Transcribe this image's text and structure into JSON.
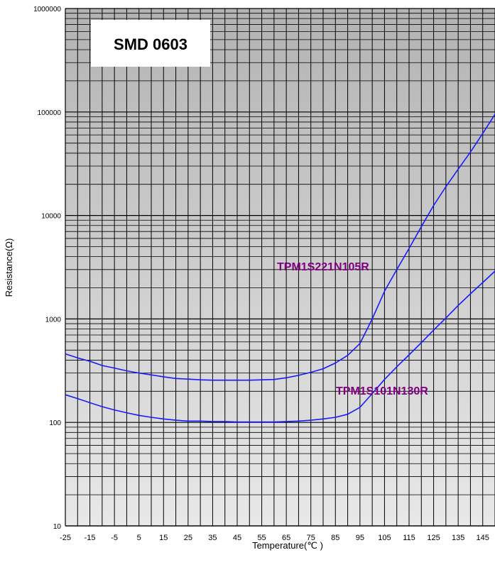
{
  "chart_data": {
    "type": "line",
    "title": "SMD 0603",
    "xlabel": "Temperature(℃ )",
    "ylabel": "Resistance(Ω)",
    "x_ticks": [
      -25,
      -15,
      -5,
      5,
      15,
      25,
      35,
      45,
      55,
      65,
      75,
      85,
      95,
      105,
      115,
      125,
      135,
      145
    ],
    "y_scale": "log",
    "y_ticks": [
      10,
      100,
      1000,
      10000,
      100000,
      1000000
    ],
    "y_tick_labels": [
      "10",
      "100",
      "1000",
      "10000",
      "100000",
      "1000000"
    ],
    "xlim": [
      -25,
      150
    ],
    "ylim": [
      10,
      1000000
    ],
    "grid": true,
    "series": [
      {
        "name": "TPM1S221N105R",
        "x": [
          -25,
          -20,
          -15,
          -10,
          -5,
          0,
          5,
          10,
          15,
          20,
          25,
          30,
          35,
          40,
          45,
          50,
          55,
          60,
          65,
          70,
          75,
          80,
          85,
          90,
          95,
          100,
          105,
          110,
          115,
          120,
          125,
          130,
          135,
          140,
          145,
          150
        ],
        "values": [
          460,
          420,
          390,
          355,
          335,
          315,
          300,
          288,
          276,
          266,
          262,
          258,
          256,
          256,
          256,
          256,
          258,
          260,
          270,
          285,
          305,
          330,
          375,
          445,
          580,
          1000,
          1850,
          3000,
          4800,
          7800,
          12500,
          19000,
          28000,
          41000,
          62000,
          95000
        ]
      },
      {
        "name": "TPM1S101N130R",
        "x": [
          -25,
          -20,
          -15,
          -10,
          -5,
          0,
          5,
          10,
          15,
          20,
          25,
          30,
          35,
          40,
          45,
          50,
          55,
          60,
          65,
          70,
          75,
          80,
          85,
          90,
          95,
          100,
          105,
          110,
          115,
          120,
          125,
          130,
          135,
          140,
          145,
          150
        ],
        "values": [
          185,
          170,
          155,
          142,
          132,
          124,
          117,
          112,
          108,
          105,
          103,
          103,
          102,
          102,
          101,
          101,
          101,
          101,
          102,
          103,
          105,
          108,
          112,
          120,
          140,
          190,
          260,
          345,
          450,
          590,
          780,
          1020,
          1350,
          1750,
          2250,
          2900
        ]
      }
    ],
    "series_labels": [
      {
        "text": "TPM1S221N105R",
        "color": "#800080"
      },
      {
        "text": "TPM1S101N130R",
        "color": "#800080"
      }
    ],
    "colors": {
      "line": "#1a1aff",
      "label": "#800080",
      "title_box_bg": "#ffffff",
      "plot_bg_top": "#b5b5b5",
      "plot_bg_bottom": "#e6e6e6",
      "grid": "#000000"
    }
  }
}
